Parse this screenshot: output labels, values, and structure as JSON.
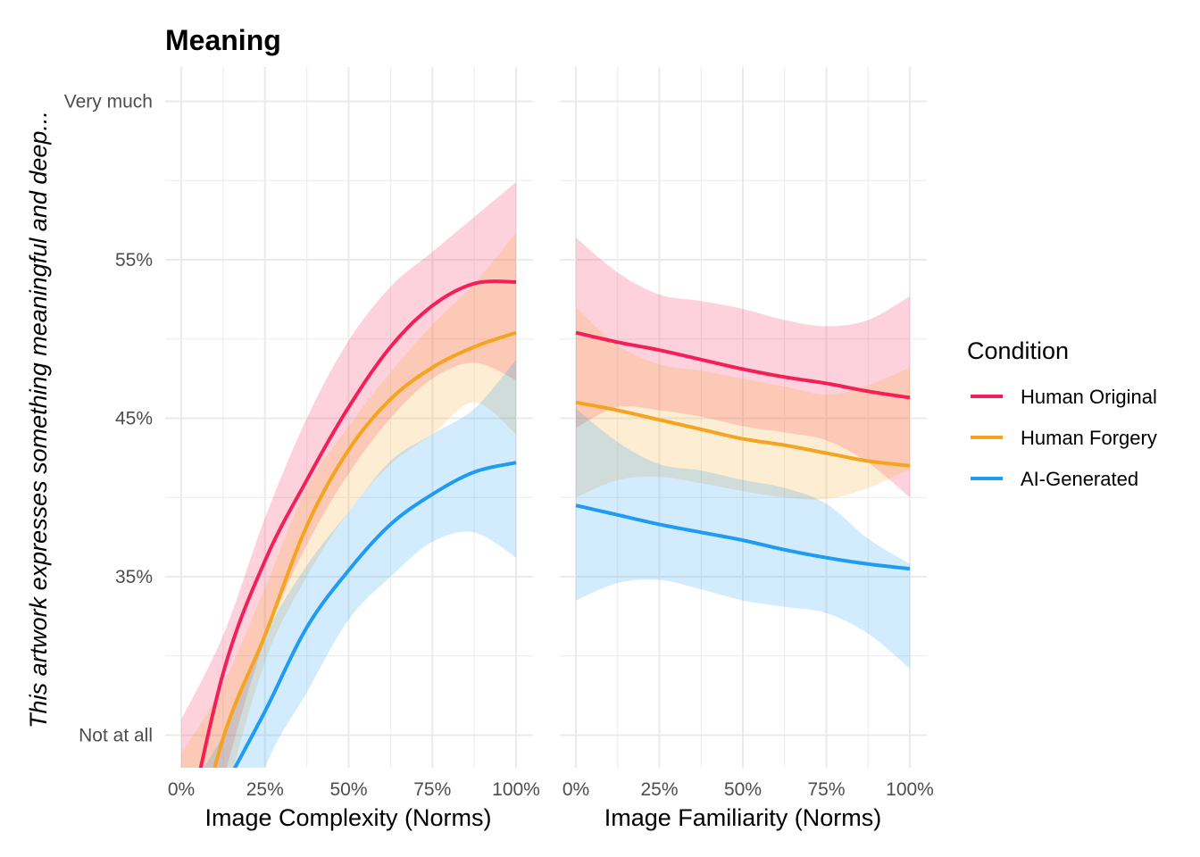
{
  "chart_data": {
    "type": "line",
    "title": "Meaning",
    "ylabel": "This artwork expresses something meaningful and deep...",
    "ylim": [
      22.9,
      67.2
    ],
    "y_ticks": [
      {
        "value": 65,
        "label": "Very much"
      },
      {
        "value": 55,
        "label": "55%"
      },
      {
        "value": 45,
        "label": "45%"
      },
      {
        "value": 35,
        "label": "35%"
      },
      {
        "value": 25,
        "label": "Not at all"
      }
    ],
    "x_ticks": [
      "0%",
      "25%",
      "50%",
      "75%",
      "100%"
    ],
    "grid": true,
    "colors": {
      "Human Original": "#F41F57",
      "Human Forgery": "#F4A41E",
      "AI-Generated": "#1E9CF4"
    },
    "legend": {
      "title": "Condition",
      "placement": "right",
      "entries": [
        "Human Original",
        "Human Forgery",
        "AI-Generated"
      ]
    },
    "panels": [
      {
        "xlabel": "Image Complexity (Norms)",
        "x": [
          0,
          12.5,
          25,
          37.5,
          50,
          62.5,
          75,
          87.5,
          100
        ],
        "series": [
          {
            "name": "Human Original",
            "values": [
              17.2,
              28.9,
              36.0,
              41.1,
              45.7,
              49.5,
              52.1,
              53.5,
              53.6
            ],
            "upper": [
              26.0,
              31.3,
              38.7,
              45.0,
              49.9,
              53.3,
              55.5,
              57.7,
              59.9
            ],
            "lower": [
              10.0,
              22.0,
              31.0,
              37.0,
              41.5,
              45.0,
              47.5,
              48.5,
              47.4
            ]
          },
          {
            "name": "Human Forgery",
            "values": [
              14.4,
              24.8,
              31.3,
              38.2,
              43.0,
              46.2,
              48.2,
              49.5,
              50.4
            ],
            "upper": [
              23.8,
              28.2,
              34.3,
              40.6,
              44.5,
              47.9,
              50.9,
              53.5,
              56.7
            ],
            "lower": [
              5.0,
              20.0,
              29.6,
              35.0,
              39.1,
              42.1,
              44.0,
              46.0,
              44.0
            ]
          },
          {
            "name": "AI-Generated",
            "values": [
              16.0,
              21.5,
              26.5,
              31.8,
              35.4,
              38.3,
              40.2,
              41.6,
              42.2
            ],
            "upper": [
              21.0,
              25.0,
              31.3,
              35.7,
              39.1,
              42.3,
              44.0,
              45.6,
              48.7
            ],
            "lower": [
              5.0,
              14.0,
              22.9,
              27.7,
              32.3,
              35.0,
              37.2,
              37.8,
              36.2
            ]
          }
        ]
      },
      {
        "xlabel": "Image Familiarity (Norms)",
        "x": [
          0,
          12.5,
          25,
          37.5,
          50,
          62.5,
          75,
          87.5,
          100
        ],
        "series": [
          {
            "name": "Human Original",
            "values": [
              50.4,
              49.8,
              49.3,
              48.7,
              48.1,
              47.6,
              47.2,
              46.7,
              46.3
            ],
            "upper": [
              56.4,
              54.2,
              52.8,
              52.4,
              51.9,
              51.2,
              50.8,
              51.2,
              52.7
            ],
            "lower": [
              44.4,
              45.7,
              45.5,
              45.1,
              44.5,
              44.1,
              43.6,
              42.2,
              40.0
            ]
          },
          {
            "name": "Human Forgery",
            "values": [
              46.0,
              45.5,
              44.9,
              44.3,
              43.7,
              43.3,
              42.8,
              42.3,
              42.0
            ],
            "upper": [
              52.0,
              49.6,
              48.4,
              48.0,
              47.5,
              47.0,
              46.5,
              47.1,
              48.2
            ],
            "lower": [
              40.0,
              41.1,
              41.3,
              40.9,
              40.4,
              40.0,
              39.9,
              40.6,
              41.8
            ]
          },
          {
            "name": "AI-Generated",
            "values": [
              39.5,
              38.9,
              38.3,
              37.8,
              37.3,
              36.7,
              36.2,
              35.8,
              35.5
            ],
            "upper": [
              45.6,
              43.5,
              42.1,
              41.7,
              41.1,
              40.6,
              39.6,
              37.4,
              35.8
            ],
            "lower": [
              33.5,
              34.6,
              34.8,
              34.2,
              33.5,
              33.1,
              32.7,
              31.4,
              29.2
            ]
          }
        ]
      }
    ]
  }
}
